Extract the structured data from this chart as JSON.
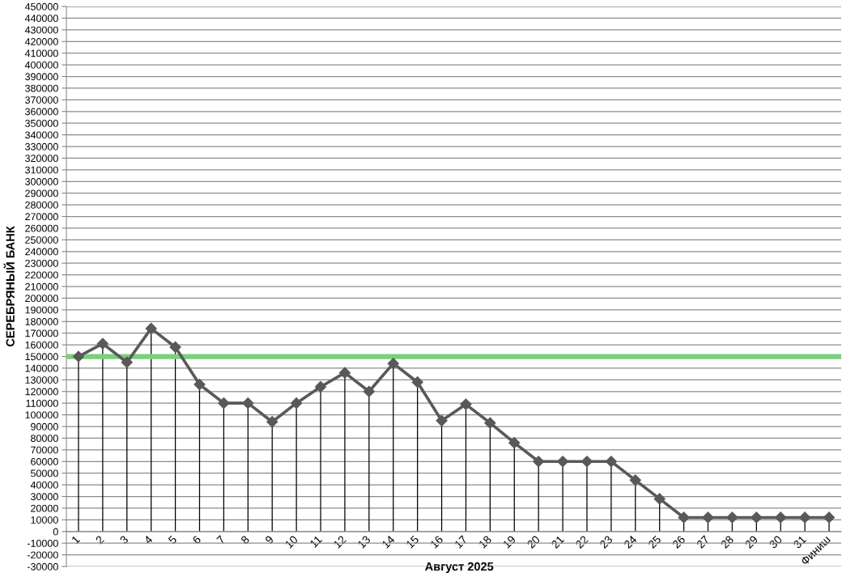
{
  "chart_data": {
    "type": "line",
    "xlabel": "Август 2025",
    "ylabel": "СЕРЕБРЯНЫЙ БАНК",
    "categories": [
      "1",
      "2",
      "3",
      "4",
      "5",
      "6",
      "7",
      "8",
      "9",
      "10",
      "11",
      "12",
      "13",
      "14",
      "15",
      "16",
      "17",
      "18",
      "19",
      "20",
      "21",
      "22",
      "23",
      "24",
      "25",
      "26",
      "27",
      "28",
      "29",
      "30",
      "31",
      "Финиш"
    ],
    "series": [
      {
        "color": "#595959",
        "values": [
          150000,
          161000,
          145000,
          174000,
          158000,
          126000,
          110000,
          110000,
          94000,
          110000,
          124000,
          136000,
          120000,
          144000,
          128000,
          95000,
          109000,
          93000,
          76000,
          60000,
          60000,
          60000,
          60000,
          44000,
          28000,
          12000,
          12000,
          12000,
          12000,
          12000,
          12000,
          12000
        ]
      },
      {
        "type": "lollipop",
        "color": "#595959",
        "marker": "diamond",
        "values": [
          150000,
          161000,
          145000,
          174000,
          158000,
          126000,
          110000,
          110000,
          94000,
          110000,
          124000,
          136000,
          120000,
          144000,
          128000,
          95000,
          109000,
          93000,
          76000,
          60000,
          60000,
          60000,
          60000,
          44000,
          28000,
          12000,
          12000,
          12000,
          12000,
          12000,
          12000,
          12000
        ]
      }
    ],
    "line_style": "solid",
    "grid": "y",
    "ylim": [
      -30000,
      450000
    ],
    "yticks": [
      -30000,
      -20000,
      -10000,
      0,
      10000,
      20000,
      30000,
      40000,
      50000,
      60000,
      70000,
      80000,
      90000,
      100000,
      110000,
      120000,
      130000,
      140000,
      150000,
      160000,
      170000,
      180000,
      190000,
      200000,
      210000,
      220000,
      230000,
      240000,
      250000,
      260000,
      270000,
      280000,
      290000,
      300000,
      310000,
      320000,
      330000,
      340000,
      350000,
      360000,
      370000,
      380000,
      390000,
      400000,
      410000,
      420000,
      430000,
      440000,
      450000
    ],
    "ref_lines": [
      {
        "axis": "y",
        "value": 150000,
        "color": "#7ccf7c"
      }
    ]
  }
}
